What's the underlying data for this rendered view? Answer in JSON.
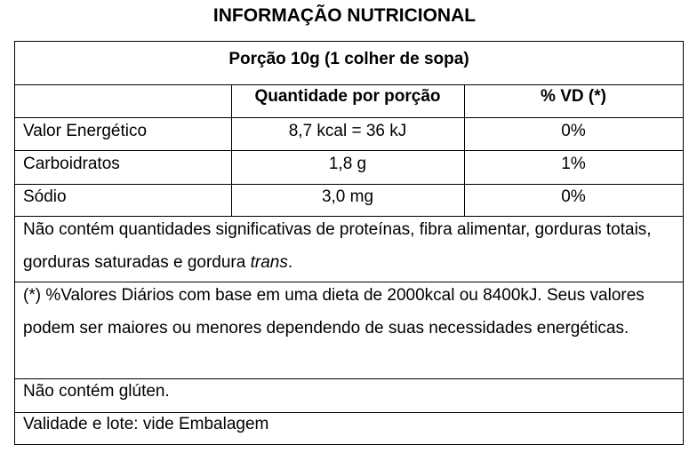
{
  "title": "INFORMAÇÃO NUTRICIONAL",
  "portion": "Porção 10g (1 colher de sopa)",
  "headers": [
    "",
    "Quantidade por porção",
    "% VD (*)"
  ],
  "rows": [
    {
      "name": "Valor Energético",
      "amount": "8,7 kcal = 36 kJ",
      "vd": "0%"
    },
    {
      "name": "Carboidratos",
      "amount": "1,8 g",
      "vd": "1%"
    },
    {
      "name": "Sódio",
      "amount": "3,0 mg",
      "vd": "0%"
    }
  ],
  "note": {
    "text": "Não contém quantidades significativas de proteínas, fibra alimentar, gorduras totais, gorduras saturadas e gordura ",
    "italic": "trans",
    "end": "."
  },
  "footnote": "(*) %Valores Diários com base em uma dieta de 2000kcal ou 8400kJ. Seus valores podem ser maiores ou menores dependendo de suas necessidades energéticas.",
  "gluten": "Não contém glúten.",
  "validity": "Validade e lote: vide Embalagem"
}
